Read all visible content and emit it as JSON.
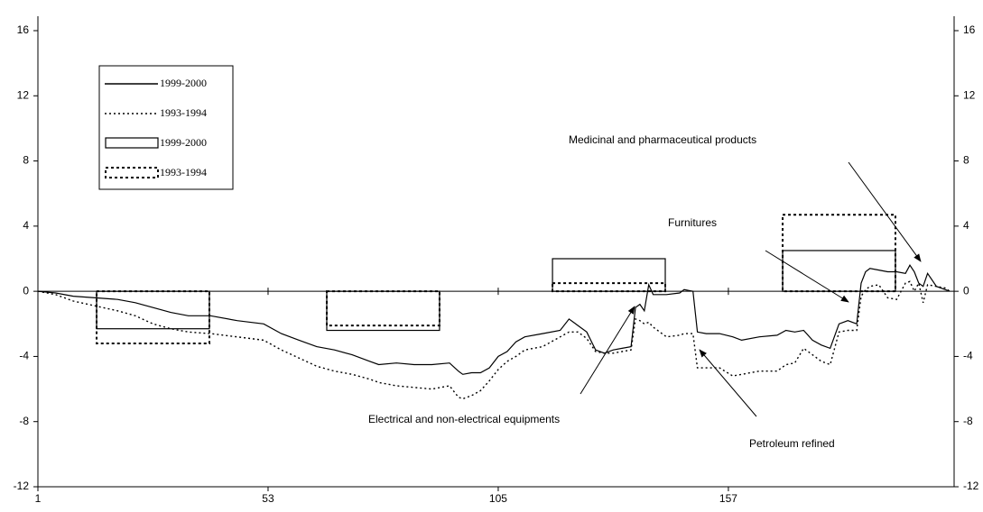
{
  "chart_data": {
    "type": "line",
    "x": [
      1,
      5,
      9,
      14,
      19,
      23,
      27,
      31,
      35,
      40,
      46,
      52,
      56,
      60,
      64,
      68,
      72,
      76,
      78,
      82,
      86,
      90,
      94,
      96,
      97,
      99,
      101,
      103,
      105,
      107,
      109,
      111,
      115,
      119,
      121,
      123,
      125,
      127,
      129,
      131,
      133,
      135,
      136,
      137,
      138,
      139,
      140,
      143,
      146,
      147,
      149,
      150,
      152,
      155,
      158,
      160,
      164,
      168,
      170,
      172,
      174,
      176,
      178,
      180,
      182,
      184,
      186,
      187,
      188,
      189,
      191,
      193,
      195,
      197,
      198,
      199,
      200,
      201,
      202,
      204,
      206,
      207
    ],
    "series": [
      {
        "name": "1999-2000",
        "color": "#000000",
        "dash": "solid",
        "values": [
          0,
          -0.1,
          -0.3,
          -0.4,
          -0.5,
          -0.7,
          -1.0,
          -1.3,
          -1.5,
          -1.5,
          -1.8,
          -2.0,
          -2.6,
          -3.0,
          -3.4,
          -3.6,
          -3.9,
          -4.3,
          -4.5,
          -4.4,
          -4.5,
          -4.5,
          -4.4,
          -4.9,
          -5.1,
          -5.0,
          -5.0,
          -4.7,
          -4.0,
          -3.7,
          -3.1,
          -2.8,
          -2.6,
          -2.4,
          -1.7,
          -2.1,
          -2.5,
          -3.6,
          -3.8,
          -3.6,
          -3.5,
          -3.4,
          -1.0,
          -0.8,
          -1.2,
          0.4,
          -0.2,
          -0.2,
          -0.1,
          0.1,
          0,
          -2.5,
          -2.6,
          -2.6,
          -2.8,
          -3.0,
          -2.8,
          -2.7,
          -2.4,
          -2.5,
          -2.4,
          -3.0,
          -3.3,
          -3.5,
          -2.0,
          -1.8,
          -2.0,
          0.5,
          1.2,
          1.4,
          1.3,
          1.2,
          1.2,
          1.1,
          1.6,
          1.2,
          0.5,
          0.3,
          1.1,
          0.3,
          0.1,
          0
        ]
      },
      {
        "name": "1993-1994",
        "color": "#000000",
        "dash": "dotted",
        "values": [
          0,
          -0.2,
          -0.6,
          -0.9,
          -1.2,
          -1.5,
          -2.0,
          -2.3,
          -2.5,
          -2.6,
          -2.8,
          -3.0,
          -3.6,
          -4.1,
          -4.6,
          -4.9,
          -5.1,
          -5.4,
          -5.6,
          -5.8,
          -5.9,
          -6.0,
          -5.8,
          -6.5,
          -6.6,
          -6.4,
          -6.1,
          -5.5,
          -4.8,
          -4.3,
          -4.0,
          -3.6,
          -3.4,
          -2.8,
          -2.5,
          -2.5,
          -2.9,
          -3.7,
          -3.8,
          -3.8,
          -3.7,
          -3.6,
          -1.7,
          -1.8,
          -2.0,
          -1.9,
          -2.2,
          -2.8,
          -2.7,
          -2.6,
          -2.6,
          -4.7,
          -4.7,
          -4.7,
          -5.2,
          -5.1,
          -4.9,
          -4.9,
          -4.5,
          -4.4,
          -3.5,
          -3.9,
          -4.3,
          -4.5,
          -2.5,
          -2.4,
          -2.4,
          -0.3,
          0.1,
          0.3,
          0.4,
          -0.4,
          -0.5,
          0.5,
          0.6,
          0.0,
          0.5,
          -0.7,
          0.4,
          0.3,
          0.2,
          0
        ]
      }
    ],
    "bar_x": [
      27,
      79,
      130,
      182
    ],
    "bar_series": [
      {
        "name": "1999-2000",
        "color": "#000000",
        "dash": "solid",
        "values": [
          -2.3,
          -2.4,
          2.0,
          2.5
        ]
      },
      {
        "name": "1993-1994",
        "color": "#000000",
        "dash": "dotted",
        "values": [
          -3.2,
          -2.1,
          0.5,
          4.7
        ]
      }
    ],
    "annotations": [
      "Medicinal and pharmaceutical products",
      "Furnitures",
      "Electrical and non-electrical equipments",
      "Petroleum refined"
    ],
    "xlim": [
      1,
      208
    ],
    "xticks": [
      1,
      53,
      105,
      157
    ],
    "ylim": [
      -12,
      16
    ],
    "yticks": [
      -12,
      -8,
      -4,
      0,
      4,
      8,
      12,
      16
    ],
    "y2lim": [
      -12,
      16
    ],
    "y2ticks": [
      -12,
      -8,
      -4,
      0,
      4,
      8,
      12,
      16
    ],
    "legend": "upper left"
  }
}
